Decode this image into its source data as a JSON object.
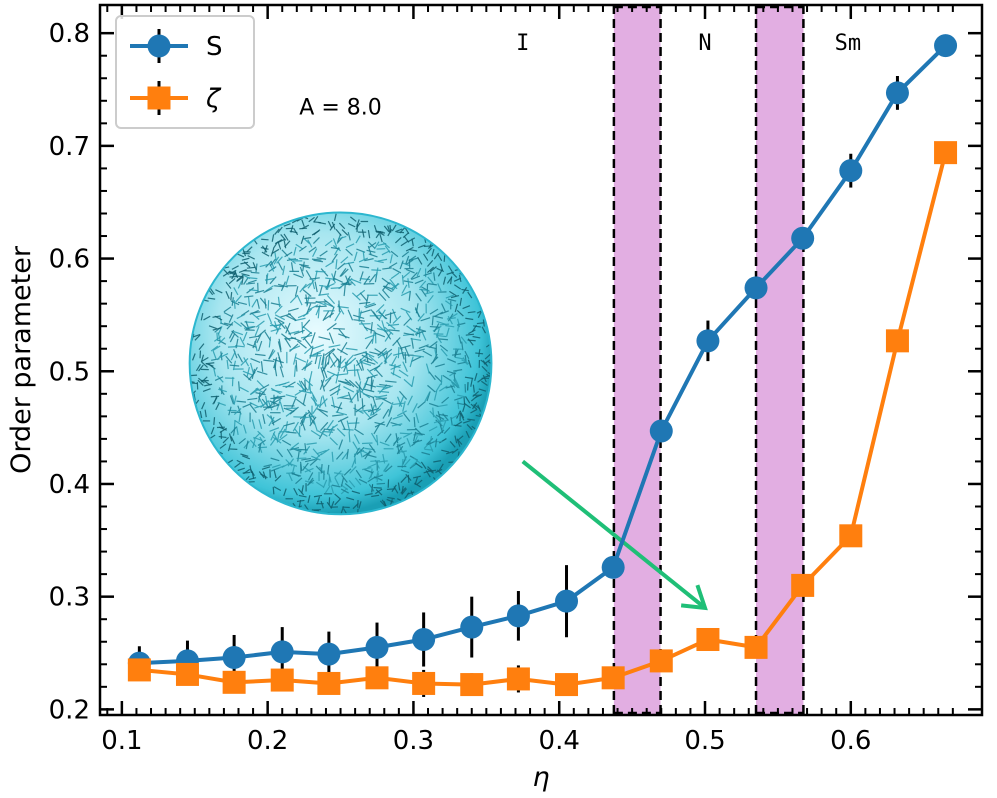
{
  "chart_data": {
    "type": "line",
    "xlabel": "η",
    "ylabel": "Order parameter",
    "xlim": [
      0.085,
      0.69
    ],
    "ylim": [
      0.195,
      0.825
    ],
    "xticks": [
      0.1,
      0.2,
      0.3,
      0.4,
      0.5,
      0.6
    ],
    "yticks": [
      0.2,
      0.3,
      0.4,
      0.5,
      0.6,
      0.7,
      0.8
    ],
    "grid": false,
    "legend_position": "top-left",
    "series": [
      {
        "name": "S",
        "color": "#1f77b4",
        "marker": "circle",
        "x": [
          0.112,
          0.145,
          0.177,
          0.21,
          0.242,
          0.275,
          0.307,
          0.34,
          0.372,
          0.405,
          0.437,
          0.47,
          0.502,
          0.535,
          0.567,
          0.6,
          0.632,
          0.665
        ],
        "values": [
          0.241,
          0.243,
          0.246,
          0.251,
          0.249,
          0.255,
          0.262,
          0.273,
          0.283,
          0.296,
          0.326,
          0.447,
          0.527,
          0.574,
          0.618,
          0.678,
          0.747,
          0.789
        ],
        "errors": [
          0.015,
          0.018,
          0.02,
          0.022,
          0.02,
          0.022,
          0.024,
          0.027,
          0.022,
          0.032,
          0.0,
          0.0,
          0.018,
          0.0,
          0.0,
          0.015,
          0.015,
          0.0
        ]
      },
      {
        "name": "ζ",
        "color": "#ff7f0e",
        "marker": "square",
        "x": [
          0.112,
          0.145,
          0.177,
          0.21,
          0.242,
          0.275,
          0.307,
          0.34,
          0.372,
          0.405,
          0.437,
          0.47,
          0.502,
          0.535,
          0.567,
          0.6,
          0.632,
          0.665
        ],
        "values": [
          0.235,
          0.231,
          0.224,
          0.226,
          0.223,
          0.228,
          0.223,
          0.222,
          0.227,
          0.222,
          0.228,
          0.243,
          0.262,
          0.255,
          0.31,
          0.354,
          0.527,
          0.694
        ],
        "errors": [
          0.0,
          0.0,
          0.0,
          0.0,
          0.0,
          0.0,
          0.012,
          0.01,
          0.012,
          0.0,
          0.0,
          0.0,
          0.0,
          0.0,
          0.0,
          0.0,
          0.0,
          0.0
        ]
      }
    ],
    "transition_bands": [
      {
        "x_from": 0.4375,
        "x_to": 0.4695,
        "color": "#dda0dd"
      },
      {
        "x_from": 0.535,
        "x_to": 0.5675,
        "color": "#dda0dd"
      }
    ],
    "phase_labels": [
      {
        "text": "I",
        "x": 0.375,
        "y": 0.785
      },
      {
        "text": "N",
        "x": 0.5,
        "y": 0.785
      },
      {
        "text": "Sm",
        "x": 0.598,
        "y": 0.785
      }
    ],
    "annotation": {
      "text": "A = 8.0",
      "x": 0.25,
      "y": 0.728
    },
    "arrow": {
      "from": [
        0.375,
        0.42
      ],
      "to": [
        0.5,
        0.29
      ],
      "color": "#1fbf77"
    },
    "inset": {
      "description": "sphere",
      "color": "#3fc4d8",
      "center": [
        0.25,
        0.507
      ],
      "radius_x": 0.1035
    }
  }
}
